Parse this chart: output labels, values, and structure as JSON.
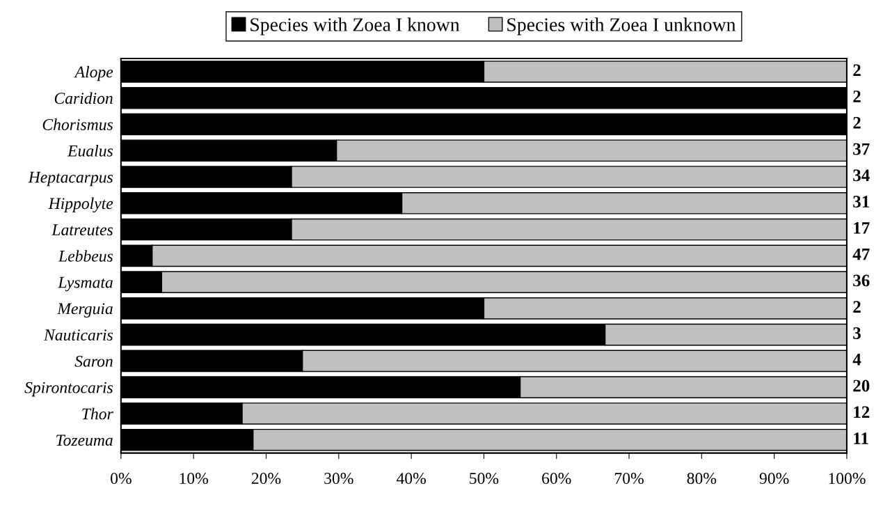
{
  "chart_data": {
    "type": "bar",
    "orientation": "horizontal",
    "stacked": true,
    "categories": [
      "Alope",
      "Caridion",
      "Chorismus",
      "Eualus",
      "Heptacarpus",
      "Hippolyte",
      "Latreutes",
      "Lebbeus",
      "Lysmata",
      "Merguia",
      "Nauticaris",
      "Saron",
      "Spirontocaris",
      "Thor",
      "Tozeuma"
    ],
    "series": [
      {
        "name": "Species with Zoea I known",
        "color": "#000000",
        "values": [
          50,
          100,
          100,
          29.7,
          23.5,
          38.7,
          23.5,
          4.3,
          5.6,
          50,
          66.7,
          25,
          55,
          16.7,
          18.2
        ]
      },
      {
        "name": "Species with Zoea I unknown",
        "color": "#c0c0c0",
        "values": [
          50,
          0,
          0,
          70.3,
          76.5,
          61.3,
          76.5,
          95.7,
          94.4,
          50,
          33.3,
          75,
          45,
          83.3,
          81.8
        ]
      }
    ],
    "xlim": [
      0,
      100
    ],
    "xticks": [
      {
        "value": 0,
        "label": "0%"
      },
      {
        "value": 10,
        "label": "10%"
      },
      {
        "value": 20,
        "label": "20%"
      },
      {
        "value": 30,
        "label": "30%"
      },
      {
        "value": 40,
        "label": "40%"
      },
      {
        "value": 50,
        "label": "50%"
      },
      {
        "value": 60,
        "label": "60%"
      },
      {
        "value": 70,
        "label": "70%"
      },
      {
        "value": 80,
        "label": "80%"
      },
      {
        "value": 90,
        "label": "90%"
      },
      {
        "value": 100,
        "label": "100%"
      }
    ],
    "annotations": [
      "2",
      "2",
      "2",
      "37",
      "34",
      "31",
      "17",
      "47",
      "36",
      "2",
      "3",
      "4",
      "20",
      "12",
      "11"
    ],
    "grid": false,
    "legend": "top"
  }
}
